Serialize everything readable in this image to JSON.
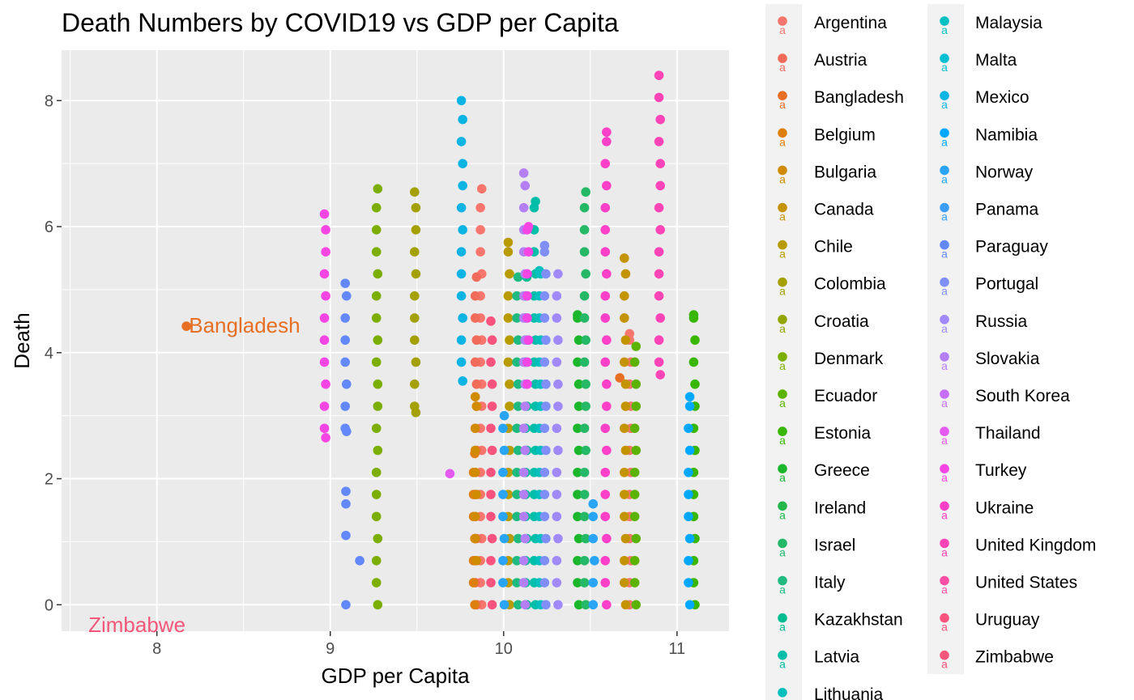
{
  "chart_data": {
    "type": "scatter",
    "title": "Death Numbers by COVID19 vs GDP per Capita",
    "xlabel": "GDP per Capita",
    "ylabel": "Death",
    "xlim": [
      7.45,
      11.3
    ],
    "ylim": [
      -0.42,
      8.8
    ],
    "xticks": [
      8,
      9,
      10,
      11
    ],
    "yticks": [
      0,
      2,
      4,
      6,
      8
    ],
    "grid": true,
    "legend_position": "right",
    "annotations": [
      {
        "text": "Bangladesh",
        "x": 8.18,
        "y": 4.42,
        "color": "#E76F24"
      },
      {
        "text": "Zimbabwe",
        "x": 7.6,
        "y": -0.33,
        "color": "#F5577B"
      }
    ],
    "series": [
      {
        "name": "Argentina",
        "color": "#F8766D",
        "stripes": [
          [
            9.87,
            0,
            6.6
          ],
          [
            10.73,
            0,
            4.3
          ]
        ],
        "points": []
      },
      {
        "name": "Austria",
        "color": "#F06B5A",
        "stripes": [
          [
            9.84,
            0,
            5.2
          ]
        ],
        "points": []
      },
      {
        "name": "Bangladesh",
        "color": "#E76F24",
        "stripes": [],
        "points": [
          [
            8.17,
            4.42
          ],
          [
            10.67,
            3.6
          ]
        ]
      },
      {
        "name": "Belgium",
        "color": "#DD7F0E",
        "stripes": [
          [
            9.83,
            0,
            2.4
          ]
        ],
        "points": []
      },
      {
        "name": "Bulgaria",
        "color": "#D08B00",
        "stripes": [
          [
            9.84,
            0.7,
            3.3
          ]
        ],
        "points": []
      },
      {
        "name": "Canada",
        "color": "#C49300",
        "stripes": [
          [
            10.7,
            0,
            5.5
          ]
        ],
        "points": []
      },
      {
        "name": "Chile",
        "color": "#B79B00",
        "stripes": [
          [
            10.03,
            0,
            5.75
          ]
        ],
        "points": []
      },
      {
        "name": "Colombia",
        "color": "#A4A000",
        "stripes": [
          [
            9.49,
            3.05,
            6.55
          ]
        ],
        "points": []
      },
      {
        "name": "Croatia",
        "color": "#93A600",
        "stripes": [],
        "points": []
      },
      {
        "name": "Denmark",
        "color": "#7CAE00",
        "stripes": [
          [
            9.27,
            0,
            6.6
          ]
        ],
        "points": []
      },
      {
        "name": "Ecuador",
        "color": "#5BB300",
        "stripes": [
          [
            10.76,
            0,
            4.1
          ]
        ],
        "points": []
      },
      {
        "name": "Estonia",
        "color": "#39B600",
        "stripes": [
          [
            11.1,
            0,
            4.6
          ]
        ],
        "points": []
      },
      {
        "name": "Greece",
        "color": "#1CB62D",
        "stripes": [
          [
            10.43,
            0,
            4.6
          ]
        ],
        "points": []
      },
      {
        "name": "Ireland",
        "color": "#22B74A",
        "stripes": [],
        "points": []
      },
      {
        "name": "Israel",
        "color": "#24B867",
        "stripes": [
          [
            10.47,
            0,
            6.55
          ]
        ],
        "points": []
      },
      {
        "name": "Italy",
        "color": "#1EBA80",
        "stripes": [
          [
            10.08,
            0,
            5.2
          ]
        ],
        "points": []
      },
      {
        "name": "Kazakhstan",
        "color": "#00BC91",
        "stripes": [
          [
            10.13,
            0,
            5.2
          ]
        ],
        "points": []
      },
      {
        "name": "Latvia",
        "color": "#00BEA8",
        "stripes": [
          [
            10.18,
            0,
            6.4
          ]
        ],
        "points": []
      },
      {
        "name": "Lithuania",
        "color": "#00BFBD",
        "stripes": [
          [
            10.21,
            0,
            5.3
          ]
        ],
        "points": []
      },
      {
        "name": "Malaysia",
        "color": "#00C0C4",
        "stripes": [],
        "points": []
      },
      {
        "name": "Malta",
        "color": "#00BFD0",
        "stripes": [],
        "points": []
      },
      {
        "name": "Mexico",
        "color": "#0CB4E3",
        "stripes": [
          [
            9.76,
            3.55,
            8.0
          ]
        ],
        "points": []
      },
      {
        "name": "Namibia",
        "color": "#00A9FF",
        "stripes": [
          [
            11.07,
            0,
            3.3
          ]
        ],
        "points": []
      },
      {
        "name": "Norway",
        "color": "#2AA4F4",
        "stripes": [
          [
            10.0,
            0,
            3.0
          ],
          [
            10.52,
            0,
            1.6
          ]
        ],
        "points": []
      },
      {
        "name": "Panama",
        "color": "#3A9EF7",
        "stripes": [],
        "points": []
      },
      {
        "name": "Paraguay",
        "color": "#6388FA",
        "stripes": [
          [
            9.09,
            2.75,
            5.1
          ]
        ],
        "points": [
          [
            9.09,
            1.8
          ],
          [
            9.09,
            1.6
          ],
          [
            9.09,
            1.1
          ],
          [
            9.09,
            0.0
          ],
          [
            9.17,
            0.7
          ]
        ]
      },
      {
        "name": "Portugal",
        "color": "#7F8FF7",
        "stripes": [
          [
            10.24,
            0,
            5.7
          ]
        ],
        "points": []
      },
      {
        "name": "Russia",
        "color": "#A08AFA",
        "stripes": [
          [
            10.31,
            0,
            5.25
          ]
        ],
        "points": []
      },
      {
        "name": "Slovakia",
        "color": "#B47FF3",
        "stripes": [
          [
            10.12,
            0,
            6.85
          ]
        ],
        "points": []
      },
      {
        "name": "South Korea",
        "color": "#C66EF5",
        "stripes": [],
        "points": []
      },
      {
        "name": "Thailand",
        "color": "#E55AF0",
        "stripes": [],
        "points": [
          [
            9.69,
            2.08
          ]
        ]
      },
      {
        "name": "Turkey",
        "color": "#F546E3",
        "stripes": [
          [
            8.97,
            2.65,
            6.2
          ],
          [
            10.14,
            3.5,
            6.0
          ]
        ],
        "points": []
      },
      {
        "name": "Ukraine",
        "color": "#FD40C8",
        "stripes": [
          [
            10.59,
            0,
            7.5
          ]
        ],
        "points": []
      },
      {
        "name": "United Kingdom",
        "color": "#FF44B8",
        "stripes": [
          [
            10.9,
            3.65,
            8.4
          ]
        ],
        "points": []
      },
      {
        "name": "United States",
        "color": "#FF4FA5",
        "stripes": [],
        "points": []
      },
      {
        "name": "Uruguay",
        "color": "#F9537E",
        "stripes": [
          [
            9.93,
            0,
            4.5
          ]
        ],
        "points": []
      },
      {
        "name": "Zimbabwe",
        "color": "#F5577B",
        "stripes": [],
        "points": []
      }
    ]
  }
}
